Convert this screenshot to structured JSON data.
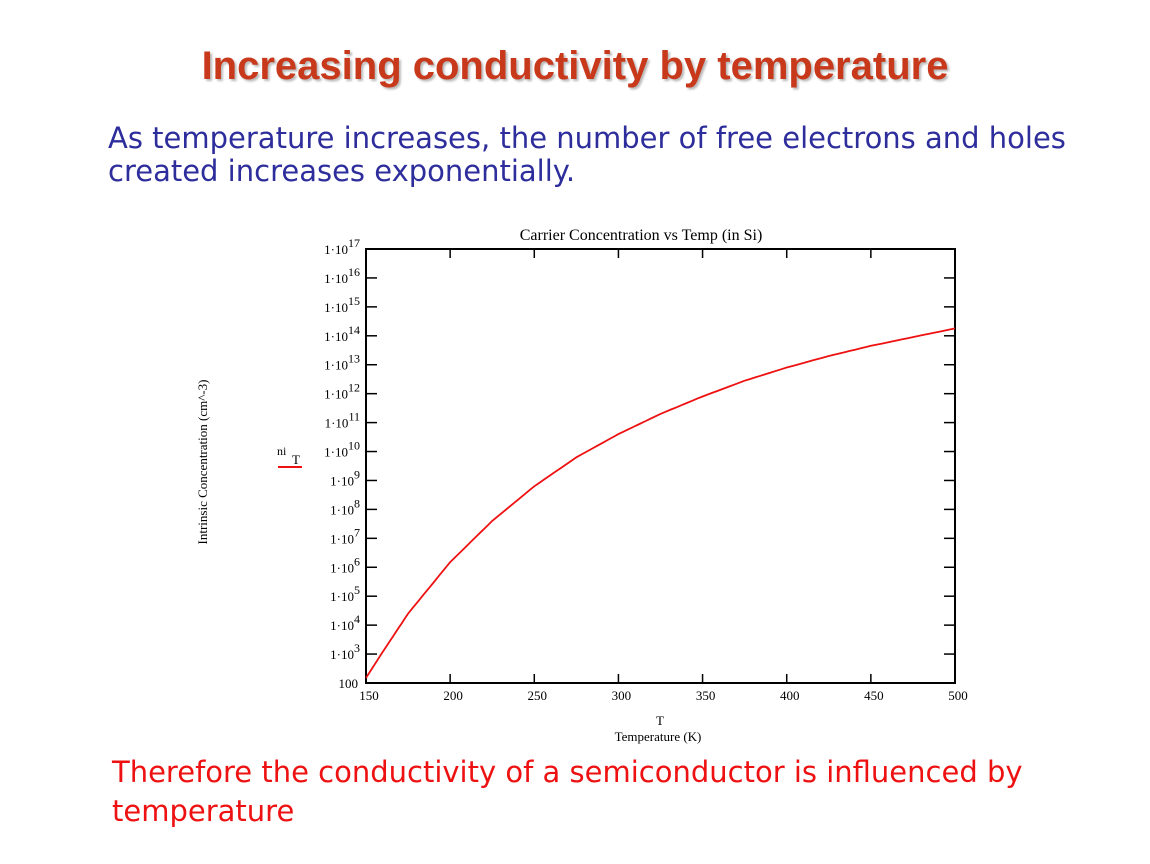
{
  "slide": {
    "title": "Increasing conductivity by temperature",
    "intro": "As temperature increases, the number of free electrons and holes created increases exponentially.",
    "conclusion": "Therefore the conductivity of a semiconductor is influenced by temperature"
  },
  "colors": {
    "title": "#c8381a",
    "intro_text": "#2d2d9c",
    "conclusion_text": "#ee1111",
    "series_line": "#ee1111"
  },
  "chart_data": {
    "type": "line",
    "title": "Carrier Concentration vs Temp (in Si)",
    "xlabel": "Temperature (K)",
    "xvar": "T",
    "ylabel": "Intrinsic Concentration (cm^-3)",
    "legend": {
      "label": "ni",
      "sub": "T"
    },
    "yscale": "log",
    "xlim": [
      150,
      500
    ],
    "ylim": [
      100,
      1e+17
    ],
    "grid": false,
    "xticks": [
      "150",
      "200",
      "250",
      "300",
      "350",
      "400",
      "450",
      "500"
    ],
    "yticks": [
      {
        "base": "100",
        "exp": ""
      },
      {
        "base": "1·10",
        "exp": "3"
      },
      {
        "base": "1·10",
        "exp": "4"
      },
      {
        "base": "1·10",
        "exp": "5"
      },
      {
        "base": "1·10",
        "exp": "6"
      },
      {
        "base": "1·10",
        "exp": "7"
      },
      {
        "base": "1·10",
        "exp": "8"
      },
      {
        "base": "1·10",
        "exp": "9"
      },
      {
        "base": "1·10",
        "exp": "10"
      },
      {
        "base": "1·10",
        "exp": "11"
      },
      {
        "base": "1·10",
        "exp": "12"
      },
      {
        "base": "1·10",
        "exp": "13"
      },
      {
        "base": "1·10",
        "exp": "14"
      },
      {
        "base": "1·10",
        "exp": "15"
      },
      {
        "base": "1·10",
        "exp": "16"
      },
      {
        "base": "1·10",
        "exp": "17"
      }
    ],
    "series": [
      {
        "x": [
          150,
          160,
          175,
          200,
          225,
          250,
          275,
          300,
          325,
          350,
          375,
          400,
          425,
          450,
          475,
          500
        ],
        "y": [
          150,
          1200,
          25000.0,
          1500000.0,
          40000000.0,
          630000000.0,
          6300000000.0,
          40000000000.0,
          200000000000.0,
          800000000000.0,
          2800000000000.0,
          8000000000000.0,
          20000000000000.0,
          45000000000000.0,
          90000000000000.0,
          180000000000000.0
        ]
      }
    ]
  }
}
